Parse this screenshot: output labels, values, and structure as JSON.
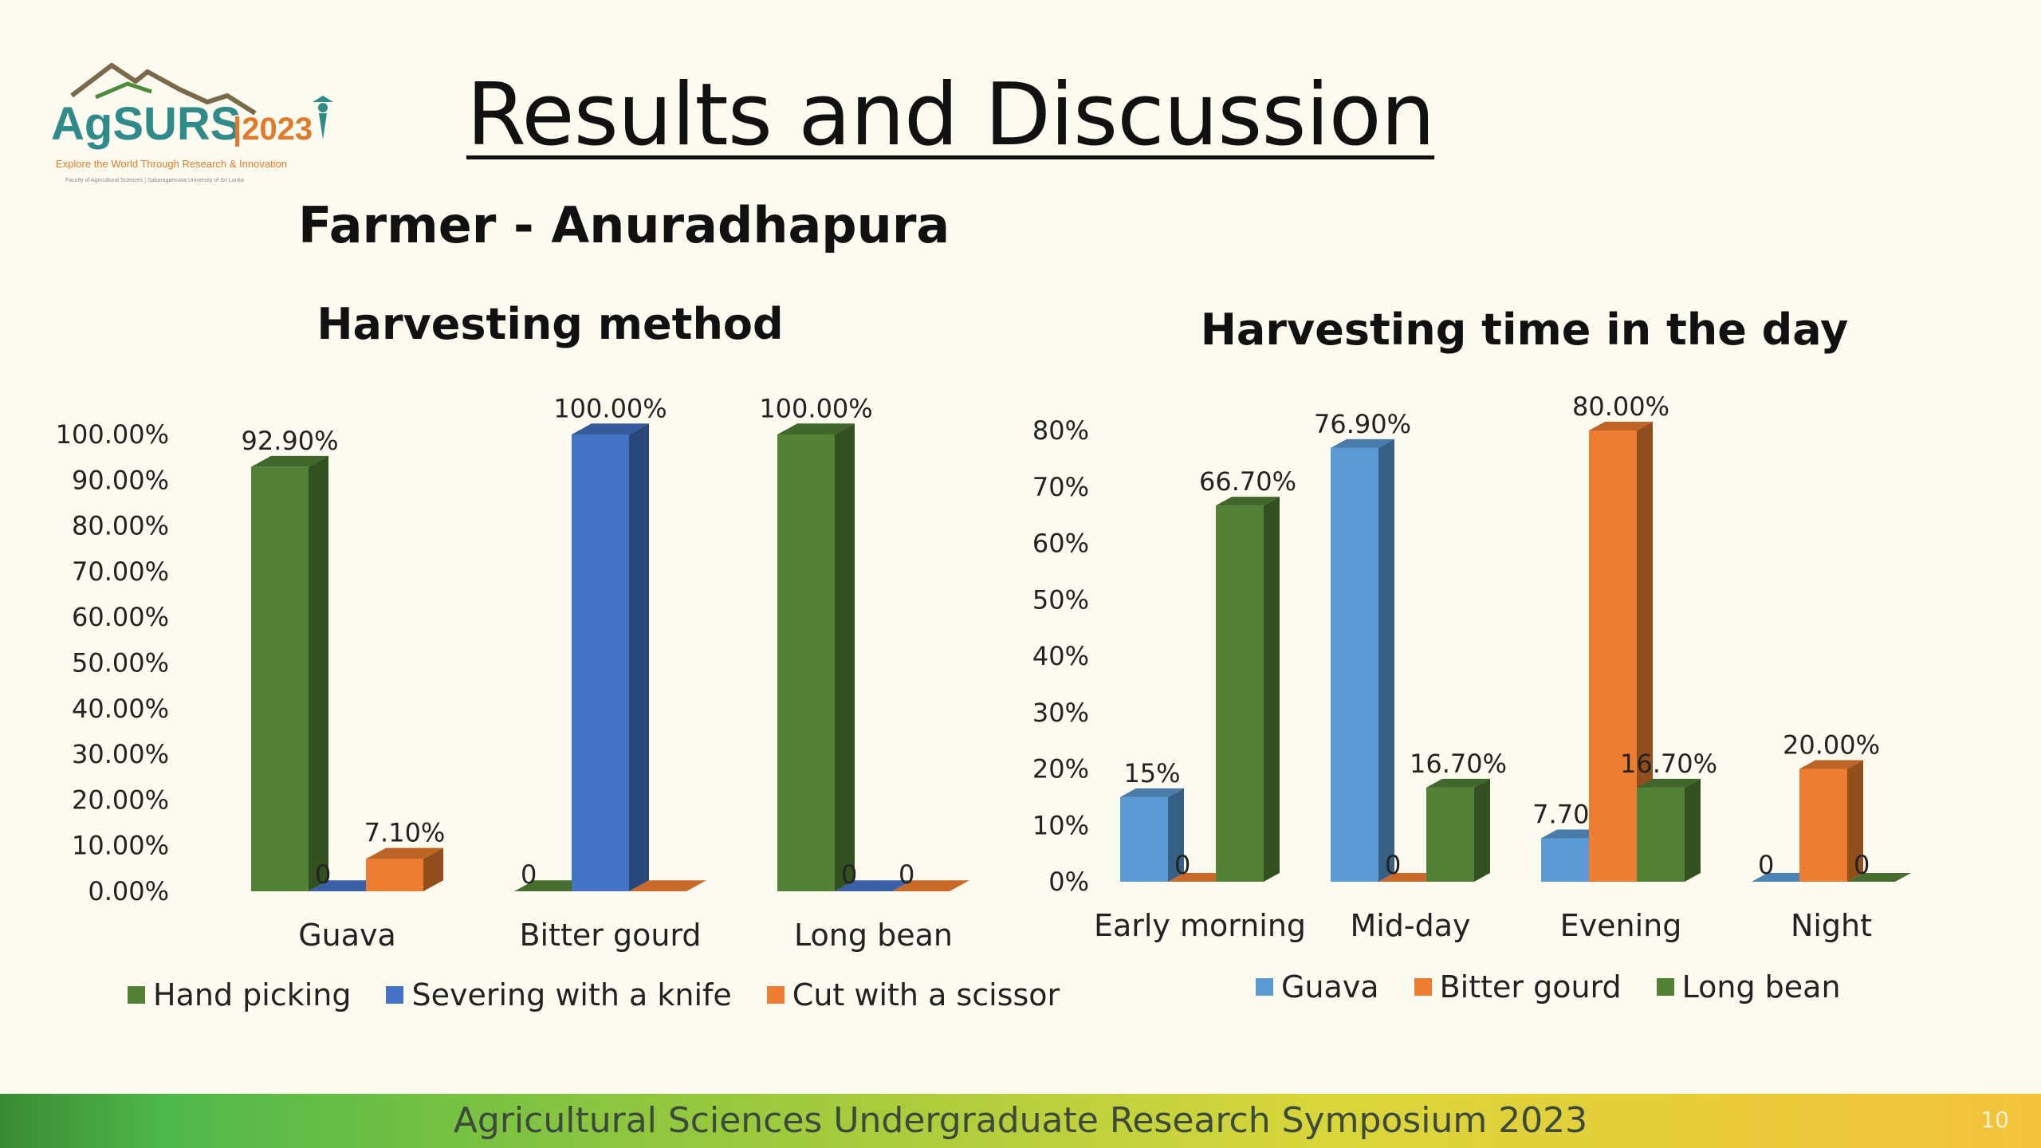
{
  "slide": {
    "title": "Results and Discussion",
    "subtitle": "Farmer - Anuradhapura",
    "footer": "Agricultural Sciences Undergraduate Research Symposium 2023",
    "page_number": "10",
    "logo": {
      "name": "AgSURS",
      "year": "|2023",
      "tagline": "Explore the World Through Research & Innovation",
      "subline": "Faculty of Agricultural Sciences | Sabaragamuwa University of Sri Lanka"
    }
  },
  "chart_data": [
    {
      "type": "bar",
      "title": "Harvesting method",
      "categories": [
        "Guava",
        "Bitter gourd",
        "Long bean"
      ],
      "series": [
        {
          "name": "Hand picking",
          "color": "#538135",
          "values": [
            92.9,
            0,
            100
          ],
          "labels": [
            "92.90%",
            "0",
            "100.00%"
          ]
        },
        {
          "name": "Severing with a knife",
          "color": "#4472c4",
          "values": [
            0,
            100,
            0
          ],
          "labels": [
            "0",
            "100.00%",
            "0"
          ]
        },
        {
          "name": "Cut with a scissor",
          "color": "#ed7d31",
          "values": [
            7.1,
            0,
            0
          ],
          "labels": [
            "7.10%",
            "",
            "0"
          ]
        }
      ],
      "ylim": [
        0,
        100
      ],
      "yticks": [
        "0.00%",
        "10.00%",
        "20.00%",
        "30.00%",
        "40.00%",
        "50.00%",
        "60.00%",
        "70.00%",
        "80.00%",
        "90.00%",
        "100.00%"
      ],
      "legend": "bottom",
      "grid": false
    },
    {
      "type": "bar",
      "title": "Harvesting time in the day",
      "categories": [
        "Early morning",
        "Mid-day",
        "Evening",
        "Night"
      ],
      "series": [
        {
          "name": "Guava",
          "color": "#5b9bd5",
          "values": [
            15,
            76.9,
            7.7,
            0
          ],
          "labels": [
            "15%",
            "76.90%",
            "7.70%",
            "0"
          ]
        },
        {
          "name": "Bitter gourd",
          "color": "#ed7d31",
          "values": [
            0,
            0,
            80,
            20
          ],
          "labels": [
            "0",
            "0",
            "80.00%",
            "20.00%"
          ]
        },
        {
          "name": "Long bean",
          "color": "#538135",
          "values": [
            66.7,
            16.7,
            16.7,
            0
          ],
          "labels": [
            "66.70%",
            "16.70%",
            "16.70%",
            "0"
          ]
        }
      ],
      "ylim": [
        0,
        80
      ],
      "yticks": [
        "0%",
        "10%",
        "20%",
        "30%",
        "40%",
        "50%",
        "60%",
        "70%",
        "80%"
      ],
      "legend": "bottom",
      "grid": false
    }
  ]
}
